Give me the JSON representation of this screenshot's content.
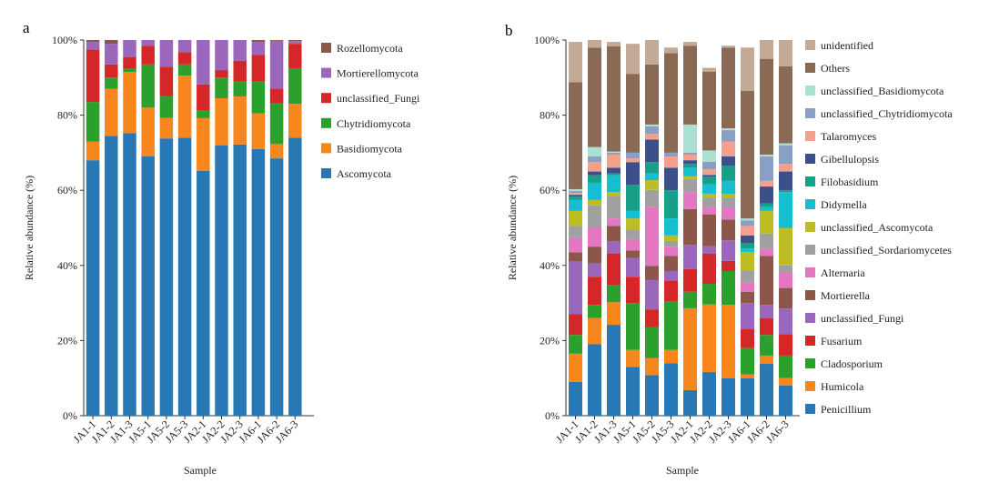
{
  "chart_data": [
    {
      "panel": "a",
      "type": "bar",
      "stacked": true,
      "title": "",
      "xlabel": "Sample",
      "ylabel": "Relative abundance (%)",
      "ylim": [
        0,
        100
      ],
      "yticks": [
        "0%",
        "20%",
        "40%",
        "60%",
        "80%",
        "100%"
      ],
      "legend_position": "right",
      "categories": [
        "JA1-1",
        "JA1-2",
        "JA1-3",
        "JA5-1",
        "JA5-2",
        "JA5-3",
        "JA2-1",
        "JA2-2",
        "JA2-3",
        "JA6-1",
        "JA6-2",
        "JA6-3"
      ],
      "series": [
        {
          "name": "Ascomycota",
          "color": "#2878b5",
          "values": [
            68.0,
            74.5,
            75.2,
            69.0,
            73.8,
            74.0,
            65.2,
            72.0,
            72.2,
            71.0,
            68.5,
            74.0
          ]
        },
        {
          "name": "Basidiomycota",
          "color": "#f7861d",
          "values": [
            5.0,
            12.5,
            16.3,
            13.0,
            5.5,
            16.5,
            14.0,
            12.5,
            12.8,
            9.5,
            3.8,
            9.0
          ]
        },
        {
          "name": "Chytridiomycota",
          "color": "#2ca02c",
          "values": [
            10.5,
            3.0,
            0.8,
            11.5,
            5.8,
            3.0,
            2.0,
            5.5,
            4.0,
            8.5,
            10.8,
            9.5
          ]
        },
        {
          "name": "unclassified_Fungi",
          "color": "#d62728",
          "values": [
            14.0,
            3.5,
            3.2,
            5.0,
            7.8,
            3.3,
            7.0,
            2.0,
            5.5,
            7.0,
            4.0,
            6.5
          ]
        },
        {
          "name": "Mortierellomycota",
          "color": "#9b67bd",
          "values": [
            2.0,
            5.5,
            4.5,
            1.5,
            7.1,
            3.2,
            11.8,
            8.0,
            5.5,
            3.5,
            12.7,
            0.7
          ]
        },
        {
          "name": "Rozellomycota",
          "color": "#8c564b",
          "values": [
            0.5,
            1.0,
            0.0,
            0.0,
            0.0,
            0.0,
            0.0,
            0.0,
            0.0,
            0.5,
            0.2,
            0.3
          ]
        }
      ]
    },
    {
      "panel": "b",
      "type": "bar",
      "stacked": true,
      "title": "",
      "xlabel": "Sample",
      "ylabel": "Relative abundance (%)",
      "ylim": [
        0,
        100
      ],
      "yticks": [
        "0%",
        "20%",
        "40%",
        "60%",
        "80%",
        "100%"
      ],
      "legend_position": "right",
      "categories": [
        "JA1-1",
        "JA1-2",
        "JA1-3",
        "JA5-1",
        "JA5-2",
        "JA5-3",
        "JA2-1",
        "JA2-2",
        "JA2-3",
        "JA6-1",
        "JA6-2",
        "JA6-3"
      ],
      "series": [
        {
          "name": "Penicillium",
          "color": "#2878b5",
          "values": [
            9.0,
            19.0,
            24.2,
            13.0,
            10.8,
            14.0,
            6.8,
            11.6,
            10.0,
            10.0,
            13.8,
            8.0
          ]
        },
        {
          "name": "Humicola",
          "color": "#f7861d",
          "values": [
            7.5,
            7.0,
            6.0,
            4.5,
            4.5,
            3.5,
            21.8,
            18.0,
            19.5,
            1.0,
            2.2,
            2.0
          ]
        },
        {
          "name": "Cladosporium",
          "color": "#2ca02c",
          "values": [
            5.0,
            3.5,
            4.5,
            12.5,
            8.3,
            13.0,
            4.4,
            5.5,
            9.0,
            7.0,
            5.5,
            6.0
          ]
        },
        {
          "name": "Fusarium",
          "color": "#d62728",
          "values": [
            5.5,
            7.5,
            8.5,
            7.0,
            4.7,
            5.5,
            6.0,
            8.0,
            2.7,
            5.0,
            4.5,
            5.7
          ]
        },
        {
          "name": "unclassified_Fungi",
          "color": "#9b67bd",
          "values": [
            14.0,
            3.5,
            3.3,
            5.0,
            7.8,
            2.5,
            6.5,
            2.0,
            5.5,
            7.0,
            3.5,
            6.8
          ]
        },
        {
          "name": "Mortierella",
          "color": "#8c564b",
          "values": [
            2.5,
            4.5,
            4.0,
            2.0,
            3.8,
            4.0,
            9.5,
            8.5,
            5.5,
            3.0,
            13.0,
            5.5
          ]
        },
        {
          "name": "Alternaria",
          "color": "#e377c2",
          "values": [
            4.0,
            5.0,
            2.0,
            3.0,
            15.6,
            2.5,
            4.5,
            2.0,
            3.5,
            2.5,
            2.0,
            4.0
          ]
        },
        {
          "name": "unclassified_Sordariomycetes",
          "color": "#a0a0a0",
          "values": [
            3.0,
            6.0,
            6.0,
            2.5,
            4.6,
            1.5,
            3.5,
            2.5,
            2.3,
            3.0,
            4.0,
            2.0
          ]
        },
        {
          "name": "unclassified_Ascomycota",
          "color": "#bcbd22",
          "values": [
            4.0,
            1.5,
            1.0,
            3.0,
            2.6,
            1.5,
            0.8,
            1.0,
            1.0,
            5.0,
            6.0,
            10.0
          ]
        },
        {
          "name": "Didymella",
          "color": "#17becf",
          "values": [
            3.0,
            4.5,
            4.5,
            2.0,
            1.8,
            4.5,
            2.2,
            2.5,
            3.5,
            1.0,
            1.0,
            9.5
          ]
        },
        {
          "name": "Filobasidium",
          "color": "#16a08a",
          "values": [
            0.8,
            2.0,
            0.5,
            7.0,
            3.0,
            7.5,
            1.0,
            2.0,
            4.0,
            1.5,
            1.0,
            0.5
          ]
        },
        {
          "name": "Gibellulopsis",
          "color": "#3b4f8a",
          "values": [
            0.5,
            1.0,
            1.5,
            6.0,
            6.0,
            6.0,
            1.0,
            0.5,
            2.5,
            2.0,
            4.5,
            5.0
          ]
        },
        {
          "name": "Talaromyces",
          "color": "#f4a08f",
          "values": [
            0.5,
            2.5,
            3.5,
            1.0,
            1.5,
            3.0,
            1.5,
            1.5,
            4.0,
            2.5,
            1.5,
            2.0
          ]
        },
        {
          "name": "unclassified_Chytridiomycota",
          "color": "#8a9fc4",
          "values": [
            0.5,
            1.5,
            0.5,
            1.5,
            2.0,
            1.0,
            0.5,
            2.0,
            3.0,
            1.5,
            6.5,
            5.0
          ]
        },
        {
          "name": "unclassified_Basidiomycota",
          "color": "#a9e0d2",
          "values": [
            0.5,
            2.5,
            0.3,
            0.0,
            0.5,
            0.0,
            7.5,
            3.0,
            0.5,
            0.5,
            0.5,
            0.5
          ]
        },
        {
          "name": "Others",
          "color": "#8b6a55",
          "values": [
            28.5,
            26.5,
            28.0,
            21.0,
            16.0,
            26.5,
            21.0,
            21.0,
            21.5,
            34.0,
            25.5,
            20.5
          ]
        },
        {
          "name": "unidentified",
          "color": "#c2aa96",
          "values": [
            10.7,
            2.0,
            1.2,
            8.0,
            6.5,
            1.5,
            1.0,
            1.0,
            0.5,
            11.5,
            5.0,
            9.5
          ]
        }
      ]
    }
  ]
}
